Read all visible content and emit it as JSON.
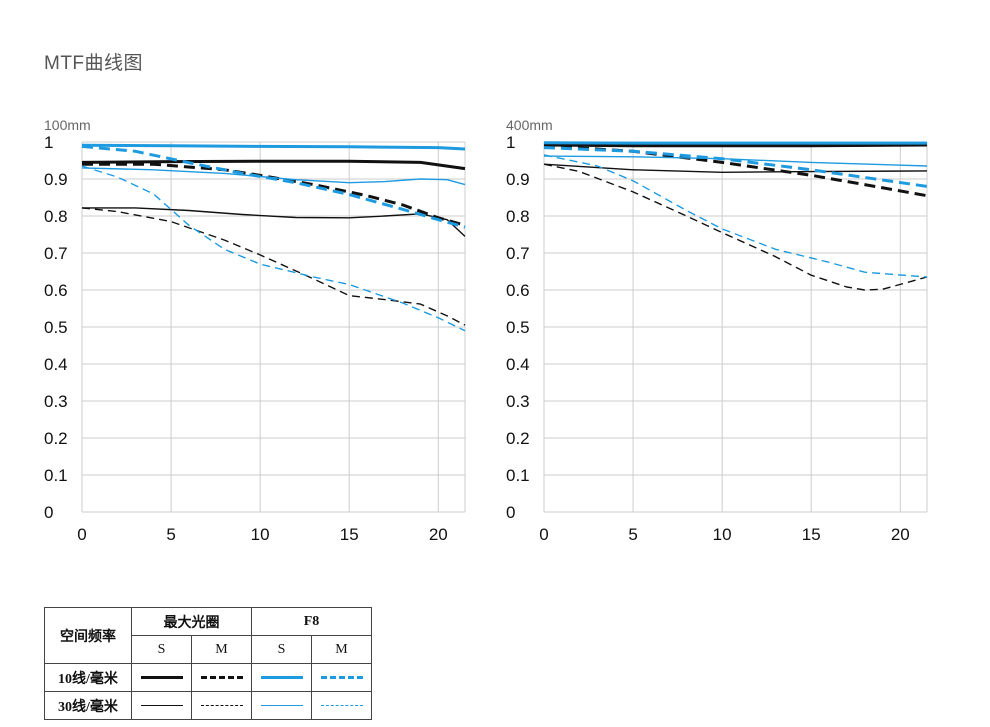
{
  "page": {
    "title": "MTF曲线图"
  },
  "colors": {
    "black": "#111111",
    "blue": "#1e9be0",
    "grid": "#cccccc"
  },
  "chart_data": [
    {
      "type": "line",
      "title": "100mm",
      "xlim": [
        0,
        21.5
      ],
      "ylim": [
        0,
        1
      ],
      "xticks": [
        "0",
        "5",
        "10",
        "15",
        "20"
      ],
      "yticks": [
        "0",
        "0.1",
        "0.2",
        "0.3",
        "0.4",
        "0.5",
        "0.6",
        "0.7",
        "0.8",
        "0.9",
        "1"
      ],
      "grid": true,
      "series": [
        {
          "group": "10线/毫米",
          "aperture": "最大光圈",
          "direction": "S",
          "color": "black",
          "dash": false,
          "width": 3,
          "x": [
            0,
            5,
            10,
            15,
            19,
            21.5
          ],
          "y": [
            0.945,
            0.947,
            0.948,
            0.948,
            0.945,
            0.928
          ]
        },
        {
          "group": "10线/毫米",
          "aperture": "最大光圈",
          "direction": "M",
          "color": "black",
          "dash": true,
          "width": 3,
          "x": [
            0,
            4,
            8,
            10,
            13,
            16,
            18,
            20,
            21.5
          ],
          "y": [
            0.94,
            0.94,
            0.925,
            0.91,
            0.885,
            0.855,
            0.83,
            0.795,
            0.775
          ]
        },
        {
          "group": "30线/毫米",
          "aperture": "最大光圈",
          "direction": "S",
          "color": "black",
          "dash": false,
          "width": 1.4,
          "x": [
            0,
            3,
            6,
            9,
            12,
            15,
            17,
            19,
            20.5,
            21.5
          ],
          "y": [
            0.822,
            0.822,
            0.815,
            0.804,
            0.796,
            0.795,
            0.8,
            0.806,
            0.79,
            0.745
          ]
        },
        {
          "group": "30线/毫米",
          "aperture": "最大光圈",
          "direction": "M",
          "color": "black",
          "dash": true,
          "width": 1.4,
          "x": [
            0,
            2,
            5,
            8,
            10,
            13,
            15,
            17,
            19,
            20.5,
            21.5
          ],
          "y": [
            0.822,
            0.812,
            0.785,
            0.735,
            0.695,
            0.63,
            0.585,
            0.574,
            0.562,
            0.53,
            0.505
          ]
        },
        {
          "group": "10线/毫米",
          "aperture": "F8",
          "direction": "S",
          "color": "blue",
          "dash": false,
          "width": 3,
          "x": [
            0,
            5,
            10,
            15,
            20,
            21.5
          ],
          "y": [
            0.991,
            0.99,
            0.988,
            0.987,
            0.985,
            0.981
          ]
        },
        {
          "group": "10线/毫米",
          "aperture": "F8",
          "direction": "M",
          "color": "blue",
          "dash": true,
          "width": 3,
          "x": [
            0,
            3,
            6,
            9,
            12,
            15,
            18,
            20,
            21.5
          ],
          "y": [
            0.988,
            0.975,
            0.944,
            0.915,
            0.89,
            0.858,
            0.818,
            0.79,
            0.77
          ]
        },
        {
          "group": "30线/毫米",
          "aperture": "F8",
          "direction": "S",
          "color": "blue",
          "dash": false,
          "width": 1.4,
          "x": [
            0,
            4,
            8,
            12,
            15,
            17,
            19,
            20.5,
            21.5
          ],
          "y": [
            0.93,
            0.925,
            0.915,
            0.898,
            0.89,
            0.893,
            0.9,
            0.898,
            0.885
          ]
        },
        {
          "group": "30线/毫米",
          "aperture": "F8",
          "direction": "M",
          "color": "blue",
          "dash": true,
          "width": 1.4,
          "x": [
            0,
            2,
            4,
            6,
            8,
            10,
            13,
            15,
            18,
            20,
            21.5
          ],
          "y": [
            0.935,
            0.905,
            0.86,
            0.775,
            0.71,
            0.67,
            0.635,
            0.615,
            0.565,
            0.525,
            0.49
          ]
        }
      ]
    },
    {
      "type": "line",
      "title": "400mm",
      "xlim": [
        0,
        21.5
      ],
      "ylim": [
        0,
        1
      ],
      "xticks": [
        "0",
        "5",
        "10",
        "15",
        "20"
      ],
      "yticks": [
        "0",
        "0.1",
        "0.2",
        "0.3",
        "0.4",
        "0.5",
        "0.6",
        "0.7",
        "0.8",
        "0.9",
        "1"
      ],
      "grid": true,
      "series": [
        {
          "group": "10线/毫米",
          "aperture": "最大光圈",
          "direction": "S",
          "color": "black",
          "dash": false,
          "width": 3,
          "x": [
            0,
            5,
            10,
            15,
            21.5
          ],
          "y": [
            0.992,
            0.99,
            0.99,
            0.99,
            0.992
          ]
        },
        {
          "group": "10线/毫米",
          "aperture": "最大光圈",
          "direction": "M",
          "color": "black",
          "dash": true,
          "width": 3,
          "x": [
            0,
            5,
            10,
            15,
            18,
            21.5
          ],
          "y": [
            0.99,
            0.975,
            0.945,
            0.91,
            0.885,
            0.855
          ]
        },
        {
          "group": "30线/毫米",
          "aperture": "最大光圈",
          "direction": "S",
          "color": "black",
          "dash": false,
          "width": 1.4,
          "x": [
            0,
            5,
            10,
            15,
            21.5
          ],
          "y": [
            0.94,
            0.925,
            0.918,
            0.92,
            0.922
          ]
        },
        {
          "group": "30线/毫米",
          "aperture": "最大光圈",
          "direction": "M",
          "color": "black",
          "dash": true,
          "width": 1.4,
          "x": [
            0,
            2,
            5,
            8,
            10,
            13,
            15,
            17,
            18,
            19,
            21.5
          ],
          "y": [
            0.94,
            0.92,
            0.865,
            0.8,
            0.755,
            0.69,
            0.64,
            0.608,
            0.6,
            0.602,
            0.635
          ]
        },
        {
          "group": "10线/毫米",
          "aperture": "F8",
          "direction": "S",
          "color": "blue",
          "dash": false,
          "width": 3,
          "x": [
            0,
            5,
            10,
            15,
            21.5
          ],
          "y": [
            0.998,
            0.997,
            0.997,
            0.997,
            0.997
          ]
        },
        {
          "group": "10线/毫米",
          "aperture": "F8",
          "direction": "M",
          "color": "blue",
          "dash": true,
          "width": 3,
          "x": [
            0,
            5,
            10,
            15,
            21.5
          ],
          "y": [
            0.985,
            0.975,
            0.955,
            0.925,
            0.88
          ]
        },
        {
          "group": "30线/毫米",
          "aperture": "F8",
          "direction": "S",
          "color": "blue",
          "dash": false,
          "width": 1.4,
          "x": [
            0,
            5,
            10,
            15,
            21.5
          ],
          "y": [
            0.962,
            0.96,
            0.955,
            0.945,
            0.935
          ]
        },
        {
          "group": "30线/毫米",
          "aperture": "F8",
          "direction": "M",
          "color": "blue",
          "dash": true,
          "width": 1.4,
          "x": [
            0,
            3,
            5,
            8,
            10,
            13,
            16,
            18,
            21.5
          ],
          "y": [
            0.965,
            0.935,
            0.895,
            0.815,
            0.765,
            0.71,
            0.675,
            0.648,
            0.635
          ]
        }
      ]
    }
  ],
  "legend": {
    "corner_label": "空间频率",
    "aperture_labels": [
      "最大光圈",
      "F8"
    ],
    "direction_labels": [
      "S",
      "M",
      "S",
      "M"
    ],
    "row_labels": [
      "10线/毫米",
      "30线/毫米"
    ]
  }
}
